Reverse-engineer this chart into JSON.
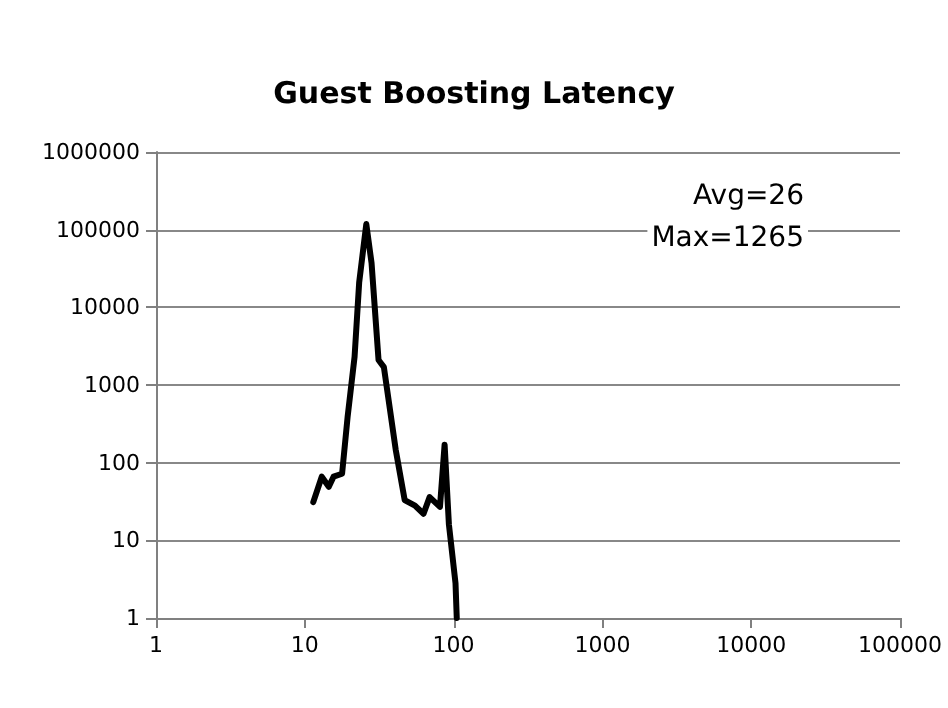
{
  "chart_data": {
    "type": "line",
    "title": "Guest Boosting Latency",
    "x": [
      11.4,
      13,
      14.5,
      15.6,
      17.8,
      19.4,
      21.6,
      23.2,
      25.9,
      28.1,
      31.3,
      34,
      40.8,
      46.9,
      55,
      62.8,
      69,
      81,
      87,
      93,
      103,
      105
    ],
    "series": [
      {
        "color": "#000000",
        "values": [
          31,
          66,
          49,
          66,
          72,
          390,
          2300,
          21000,
          118000,
          37000,
          2100,
          1700,
          148,
          33,
          28,
          22,
          36,
          27,
          170,
          16,
          2.8,
          1
        ]
      }
    ],
    "xlim": [
      1,
      100000
    ],
    "xticks": [
      1,
      10,
      100,
      1000,
      10000,
      100000
    ],
    "ylim": [
      1,
      1000000
    ],
    "yticks": [
      1,
      10,
      100,
      1000,
      10000,
      100000,
      1000000
    ],
    "log": "xy",
    "grid": "y",
    "marker": "none",
    "line_style": "solid",
    "annotations": [
      "Avg=26",
      "Max=1265"
    ]
  }
}
